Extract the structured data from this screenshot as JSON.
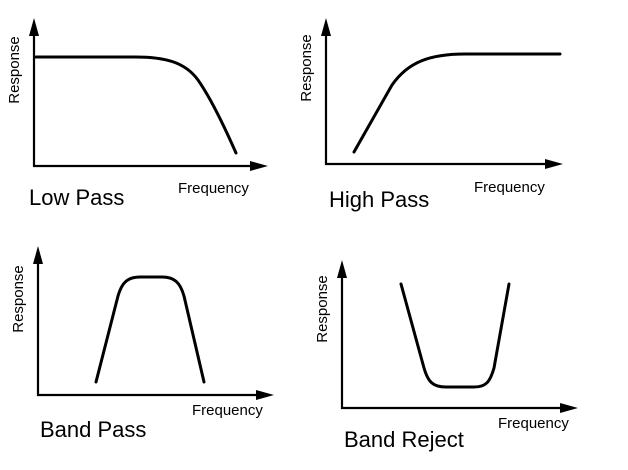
{
  "diagram": {
    "panels": [
      {
        "id": "low-pass",
        "title": "Low Pass",
        "xlabel": "Frequency",
        "ylabel": "Response",
        "response_shape": "flat high response, rolling off at high frequency"
      },
      {
        "id": "high-pass",
        "title": "High Pass",
        "xlabel": "Frequency",
        "ylabel": "Response",
        "response_shape": "rising from low frequency, then flat high response"
      },
      {
        "id": "band-pass",
        "title": "Band Pass",
        "xlabel": "Frequency",
        "ylabel": "Response",
        "response_shape": "high response only in a middle band"
      },
      {
        "id": "band-reject",
        "title": "Band Reject",
        "xlabel": "Frequency",
        "ylabel": "Response",
        "response_shape": "low response only in a middle band"
      }
    ]
  }
}
